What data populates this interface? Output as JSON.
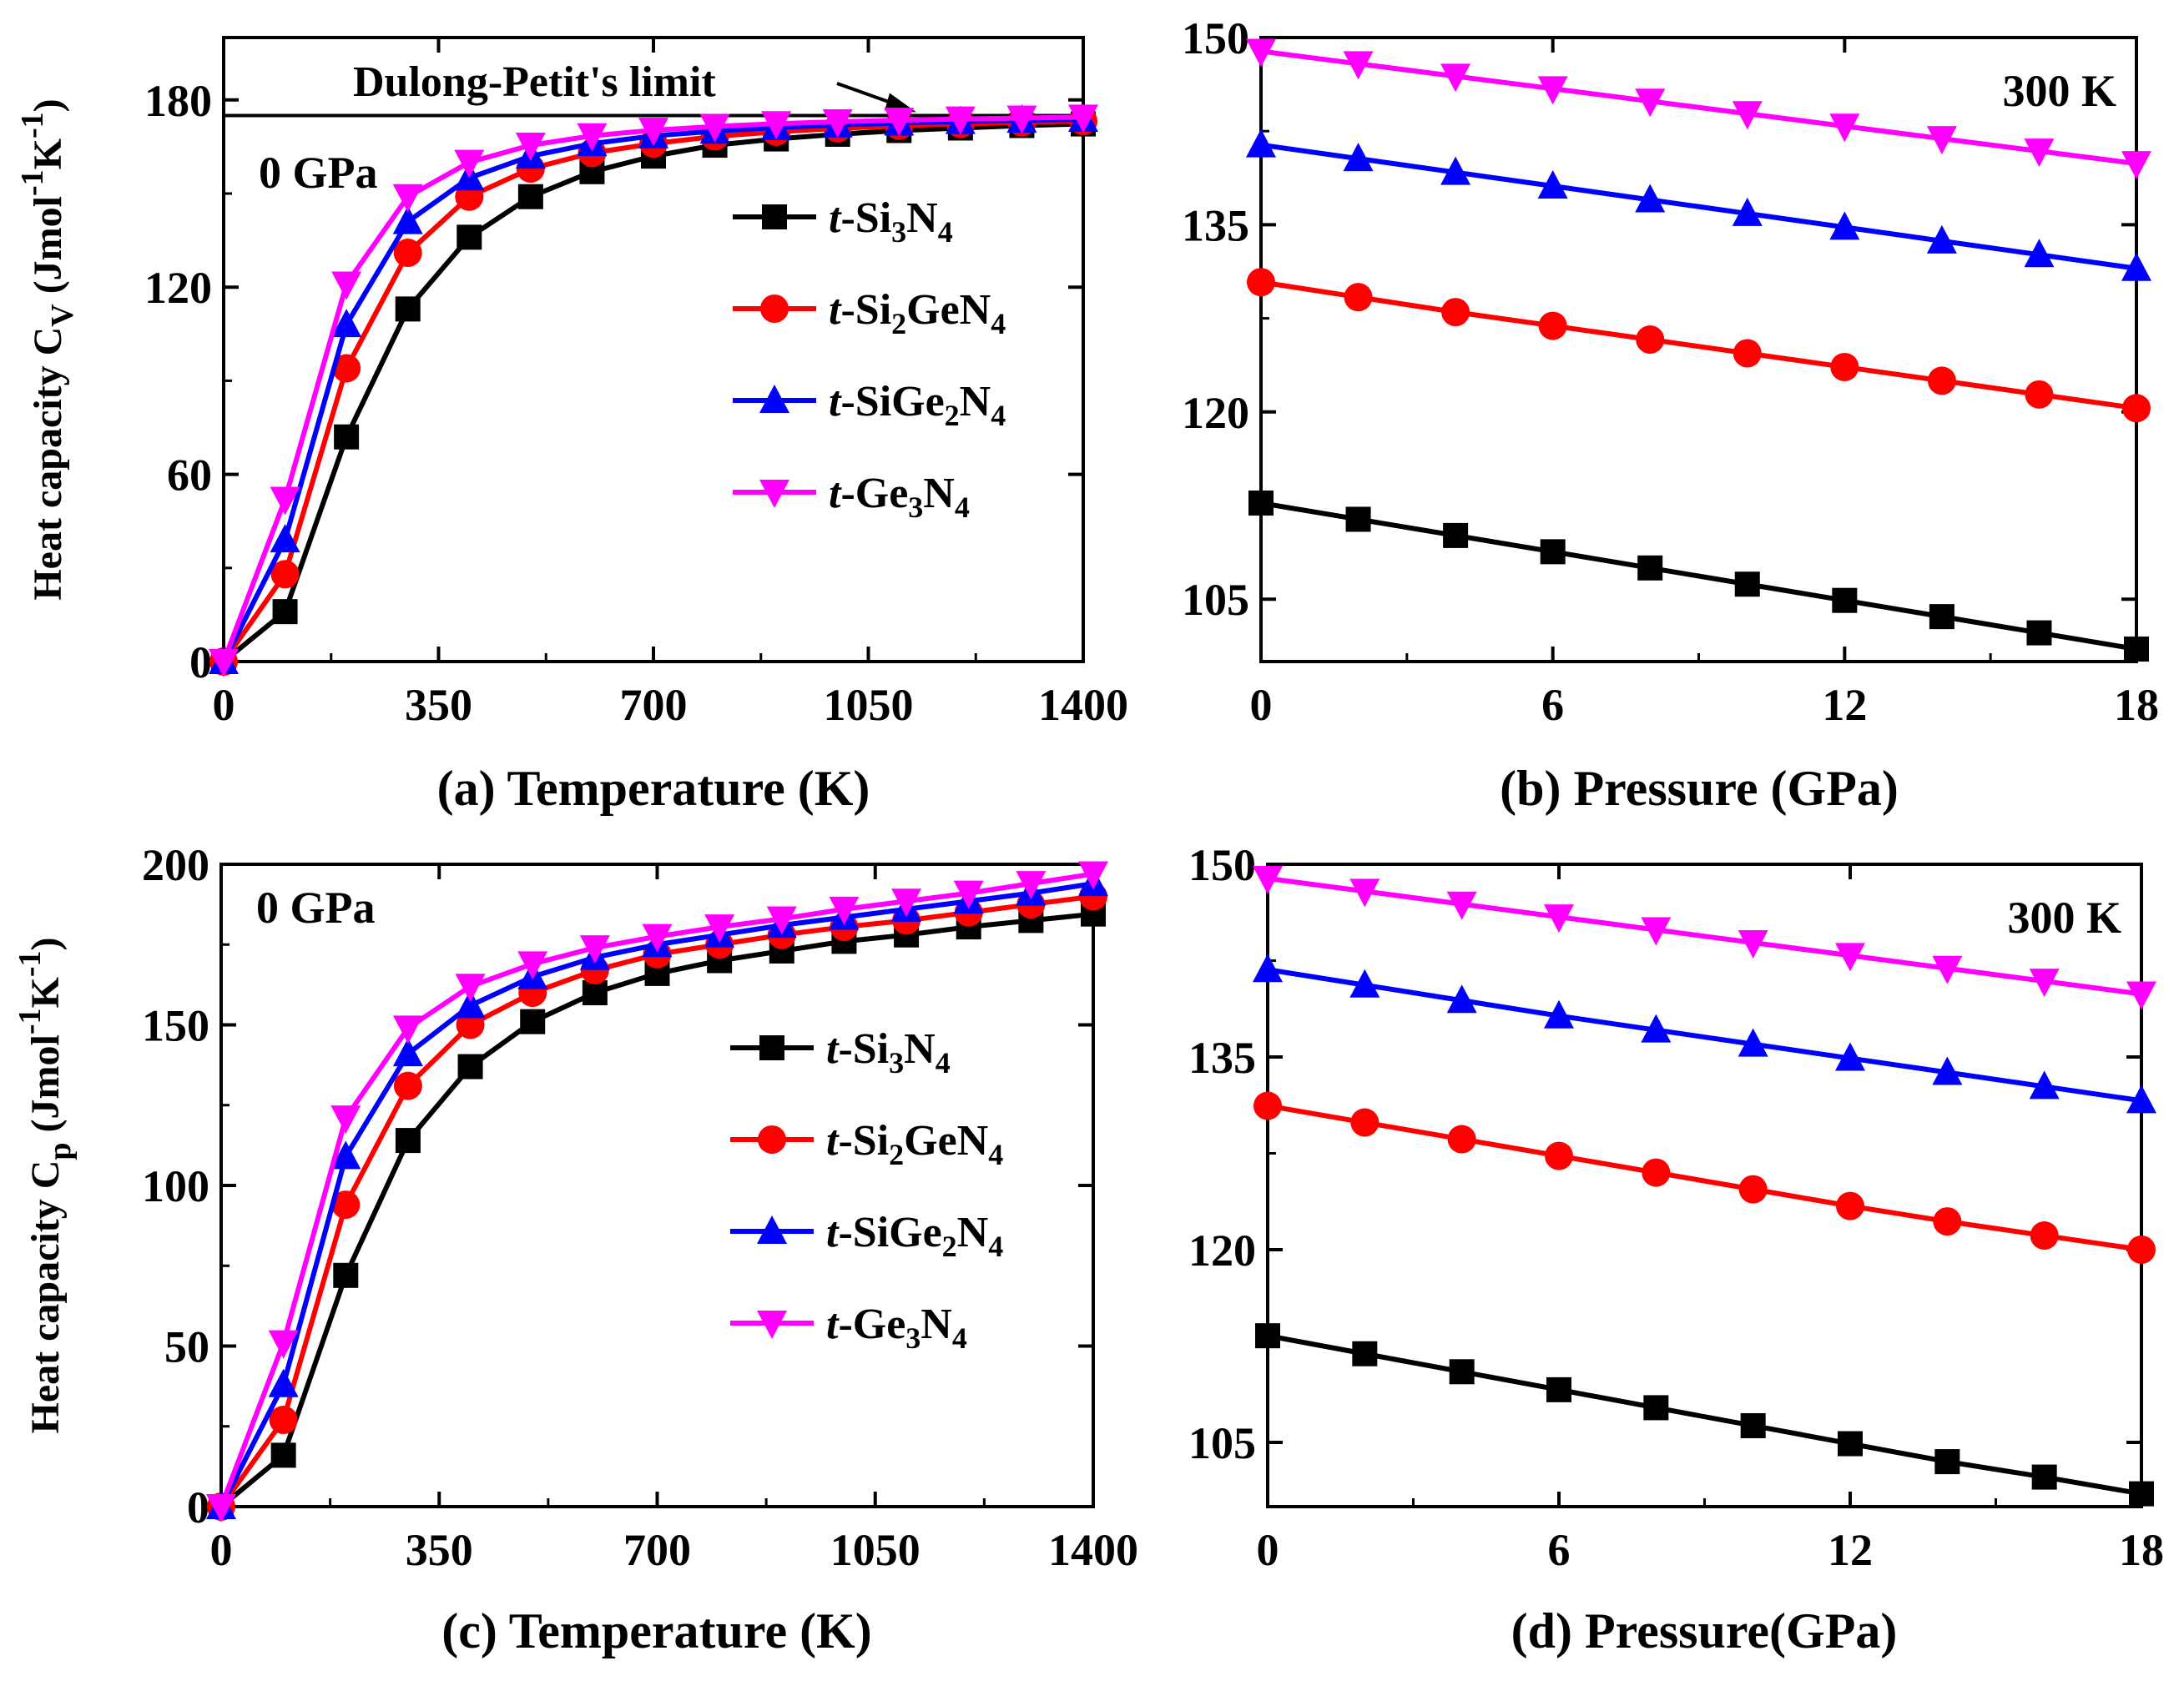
{
  "colors": {
    "Si3N4": "#000000",
    "Si2GeN4": "#ff0000",
    "SiGe2N4": "#0000ff",
    "Ge3N4": "#ff00ff"
  },
  "chart_data": [
    {
      "type": "line",
      "panel": "a",
      "xlabel": "(a) Temperature (K)",
      "ylabel": {
        "main": "Heat capacity C",
        "sub": "V",
        "units": "(Jmol",
        "sup1": "-1",
        "k": "K",
        "sup2": "-1",
        ")": ")"
      },
      "condition": "0 GPa",
      "annotation": "Dulong-Petit's limit",
      "dulong_petit": 175,
      "xlim": [
        0,
        1400
      ],
      "ylim": [
        0,
        200
      ],
      "xticks": [
        0,
        350,
        700,
        1050,
        1400
      ],
      "xtick_labels": [
        "0",
        "350",
        "700",
        "1050",
        "1400"
      ],
      "yticks": [
        0,
        60,
        120,
        180
      ],
      "ytick_labels": [
        "0",
        "60",
        "120",
        "180"
      ],
      "x": [
        0,
        100,
        200,
        300,
        400,
        500,
        600,
        700,
        800,
        900,
        1000,
        1100,
        1200,
        1300,
        1400
      ],
      "series": [
        {
          "key": "Si3N4",
          "marker": "square",
          "legend": {
            "pre": "t",
            "body": "-Si",
            "s1": "3",
            "mid": "N",
            "s2": "4"
          },
          "values": [
            0,
            16,
            72,
            113,
            136,
            149,
            157,
            162,
            165.5,
            167.5,
            169,
            170.2,
            171,
            171.8,
            172.3
          ]
        },
        {
          "key": "Si2GeN4",
          "marker": "circle",
          "legend": {
            "pre": "t",
            "body": "-Si",
            "s1": "2",
            "mid": "GeN",
            "s2": "4"
          },
          "values": [
            0,
            28,
            94,
            131,
            149,
            158,
            163,
            166,
            168.3,
            169.8,
            170.9,
            171.7,
            172.3,
            172.8,
            173.2
          ]
        },
        {
          "key": "SiGe2N4",
          "marker": "triangle-up",
          "legend": {
            "pre": "t",
            "body": "-SiGe",
            "s1": "2",
            "mid": "N",
            "s2": "4"
          },
          "values": [
            0,
            39,
            108,
            141,
            155,
            162,
            166,
            168.5,
            170,
            171.2,
            172,
            172.6,
            173.1,
            173.5,
            173.8
          ]
        },
        {
          "key": "Ge3N4",
          "marker": "triangle-down",
          "legend": {
            "pre": "t",
            "body": "-Ge",
            "s1": "3",
            "mid": "N",
            "s2": "4"
          },
          "values": [
            0,
            52,
            121,
            149,
            160,
            165.5,
            168.5,
            170.3,
            171.5,
            172.4,
            173,
            173.5,
            173.9,
            174.2,
            174.5
          ]
        }
      ]
    },
    {
      "type": "line",
      "panel": "b",
      "xlabel": "(b) Pressure (GPa)",
      "condition": "300 K",
      "xlim": [
        0,
        18
      ],
      "ylim": [
        100,
        150
      ],
      "xticks": [
        0,
        6,
        12,
        18
      ],
      "xtick_labels": [
        "0",
        "6",
        "12",
        "18"
      ],
      "yticks": [
        105,
        120,
        135,
        150
      ],
      "ytick_labels": [
        "105",
        "120",
        "135",
        "150"
      ],
      "x": [
        0,
        2,
        4,
        6,
        8,
        10,
        12,
        14,
        16,
        18
      ],
      "series": [
        {
          "key": "Si3N4",
          "marker": "square",
          "values": [
            112.7,
            111.4,
            110.1,
            108.8,
            107.5,
            106.2,
            104.9,
            103.6,
            102.3,
            101
          ]
        },
        {
          "key": "Si2GeN4",
          "marker": "circle",
          "values": [
            130.4,
            129.2,
            128,
            126.9,
            125.8,
            124.7,
            123.6,
            122.5,
            121.4,
            120.3
          ]
        },
        {
          "key": "SiGe2N4",
          "marker": "triangle-up",
          "values": [
            141.4,
            140.3,
            139.2,
            138.1,
            137,
            135.9,
            134.8,
            133.7,
            132.6,
            131.5
          ]
        },
        {
          "key": "Ge3N4",
          "marker": "triangle-down",
          "values": [
            148.9,
            147.9,
            146.9,
            145.9,
            144.9,
            143.9,
            142.9,
            141.9,
            140.9,
            139.9
          ]
        }
      ]
    },
    {
      "type": "line",
      "panel": "c",
      "xlabel": "(c) Temperature (K)",
      "ylabel": {
        "main": "Heat capacity C",
        "sub": "p",
        "units": "(Jmol",
        "sup1": "-1",
        "k": "K",
        "sup2": "-1",
        ")": ")"
      },
      "condition": "0 GPa",
      "xlim": [
        0,
        1400
      ],
      "ylim": [
        0,
        200
      ],
      "xticks": [
        0,
        350,
        700,
        1050,
        1400
      ],
      "xtick_labels": [
        "0",
        "350",
        "700",
        "1050",
        "1400"
      ],
      "yticks": [
        0,
        50,
        100,
        150,
        200
      ],
      "ytick_labels": [
        "0",
        "50",
        "100",
        "150",
        "200"
      ],
      "x": [
        0,
        100,
        200,
        300,
        400,
        500,
        600,
        700,
        800,
        900,
        1000,
        1100,
        1200,
        1300,
        1400
      ],
      "series": [
        {
          "key": "Si3N4",
          "marker": "square",
          "legend": {
            "pre": "t",
            "body": "-Si",
            "s1": "3",
            "mid": "N",
            "s2": "4"
          },
          "values": [
            0,
            16,
            72,
            114,
            137,
            151,
            160,
            166,
            170,
            173,
            176,
            178,
            180.5,
            182.5,
            184.5
          ]
        },
        {
          "key": "Si2GeN4",
          "marker": "circle",
          "legend": {
            "pre": "t",
            "body": "-Si",
            "s1": "2",
            "mid": "GeN",
            "s2": "4"
          },
          "values": [
            0,
            27,
            94,
            131,
            150,
            160,
            167,
            172,
            175,
            178,
            180.5,
            182.5,
            185,
            187.5,
            190
          ]
        },
        {
          "key": "SiGe2N4",
          "marker": "triangle-up",
          "legend": {
            "pre": "t",
            "body": "-SiGe",
            "s1": "2",
            "mid": "N",
            "s2": "4"
          },
          "values": [
            0,
            38,
            109,
            141,
            156,
            165,
            171,
            175,
            178,
            181,
            183.5,
            186,
            188.5,
            191,
            194
          ]
        },
        {
          "key": "Ge3N4",
          "marker": "triangle-down",
          "legend": {
            "pre": "t",
            "body": "-Ge",
            "s1": "3",
            "mid": "N",
            "s2": "4"
          },
          "values": [
            0,
            51,
            121,
            149,
            162,
            169,
            174,
            177.5,
            180.5,
            183,
            186,
            188.5,
            191,
            194,
            197
          ]
        }
      ]
    },
    {
      "type": "line",
      "panel": "d",
      "xlabel": "(d) Pressure(GPa)",
      "condition": "300 K",
      "xlim": [
        0,
        18
      ],
      "ylim": [
        100,
        150
      ],
      "xticks": [
        0,
        6,
        12,
        18
      ],
      "xtick_labels": [
        "0",
        "6",
        "12",
        "18"
      ],
      "yticks": [
        105,
        120,
        135,
        150
      ],
      "ytick_labels": [
        "105",
        "120",
        "135",
        "150"
      ],
      "x": [
        0,
        2,
        4,
        6,
        8,
        10,
        12,
        14,
        16,
        18
      ],
      "series": [
        {
          "key": "Si3N4",
          "marker": "square",
          "values": [
            113.3,
            111.9,
            110.5,
            109.1,
            107.7,
            106.3,
            104.9,
            103.5,
            102.3,
            101
          ]
        },
        {
          "key": "Si2GeN4",
          "marker": "circle",
          "values": [
            131.2,
            129.9,
            128.6,
            127.3,
            126,
            124.7,
            123.4,
            122.2,
            121.1,
            120
          ]
        },
        {
          "key": "SiGe2N4",
          "marker": "triangle-up",
          "values": [
            141.8,
            140.6,
            139.4,
            138.2,
            137.1,
            136,
            134.9,
            133.8,
            132.7,
            131.6
          ]
        },
        {
          "key": "Ge3N4",
          "marker": "triangle-down",
          "values": [
            148.9,
            147.9,
            146.9,
            145.9,
            144.9,
            143.9,
            142.9,
            141.9,
            140.9,
            139.9
          ]
        }
      ]
    }
  ]
}
